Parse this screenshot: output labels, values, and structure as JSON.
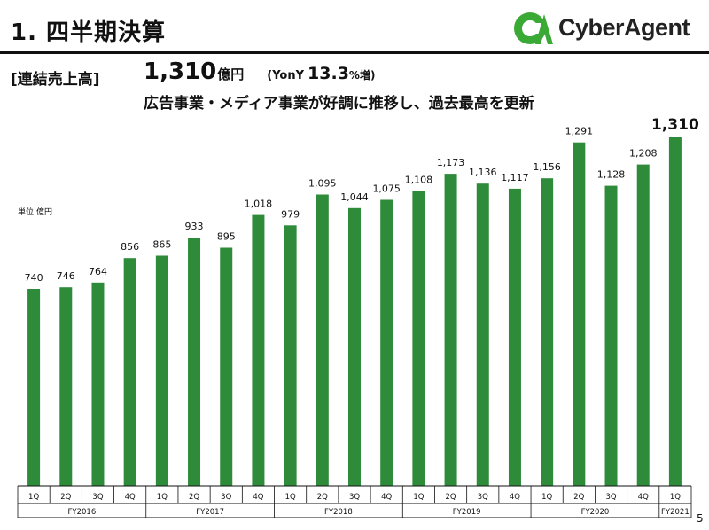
{
  "header": {
    "title": "1. 四半期決算",
    "logo_text": "CyberAgent",
    "logo_mark_text": "CA"
  },
  "summary": {
    "segment_label": "[連結売上高]",
    "headline_value": "1,310",
    "headline_unit": "億円",
    "yoy_prefix": "(YonY",
    "yoy_value": "13.3",
    "yoy_suffix": "%増)",
    "subline": "広告事業・メディア事業が好調に推移し、過去最高を更新"
  },
  "unit_note": "単位:億円",
  "page_number": "5",
  "colors": {
    "bar": "#2e8b3a",
    "logo_green": "#3aa935",
    "rule": "#111111"
  },
  "chart_data": {
    "type": "bar",
    "categories": [
      "1Q",
      "2Q",
      "3Q",
      "4Q",
      "1Q",
      "2Q",
      "3Q",
      "4Q",
      "1Q",
      "2Q",
      "3Q",
      "4Q",
      "1Q",
      "2Q",
      "3Q",
      "4Q",
      "1Q",
      "2Q",
      "3Q",
      "4Q",
      "1Q"
    ],
    "groups": [
      {
        "label": "FY2016",
        "count": 4
      },
      {
        "label": "FY2017",
        "count": 4
      },
      {
        "label": "FY2018",
        "count": 4
      },
      {
        "label": "FY2019",
        "count": 4
      },
      {
        "label": "FY2020",
        "count": 4
      },
      {
        "label": "FY2021",
        "count": 1
      }
    ],
    "values": [
      740,
      746,
      764,
      856,
      865,
      933,
      895,
      1018,
      979,
      1095,
      1044,
      1075,
      1108,
      1173,
      1136,
      1117,
      1156,
      1291,
      1128,
      1208,
      1310
    ],
    "value_labels": [
      "740",
      "746",
      "764",
      "856",
      "865",
      "933",
      "895",
      "1,018",
      "979",
      "1,095",
      "1,044",
      "1,075",
      "1,108",
      "1,173",
      "1,136",
      "1,117",
      "1,156",
      "1,291",
      "1,128",
      "1,208",
      "1,310"
    ],
    "ylim": [
      0,
      1310
    ],
    "grid": false,
    "legend": "none",
    "title": "",
    "xlabel": "",
    "ylabel": ""
  }
}
